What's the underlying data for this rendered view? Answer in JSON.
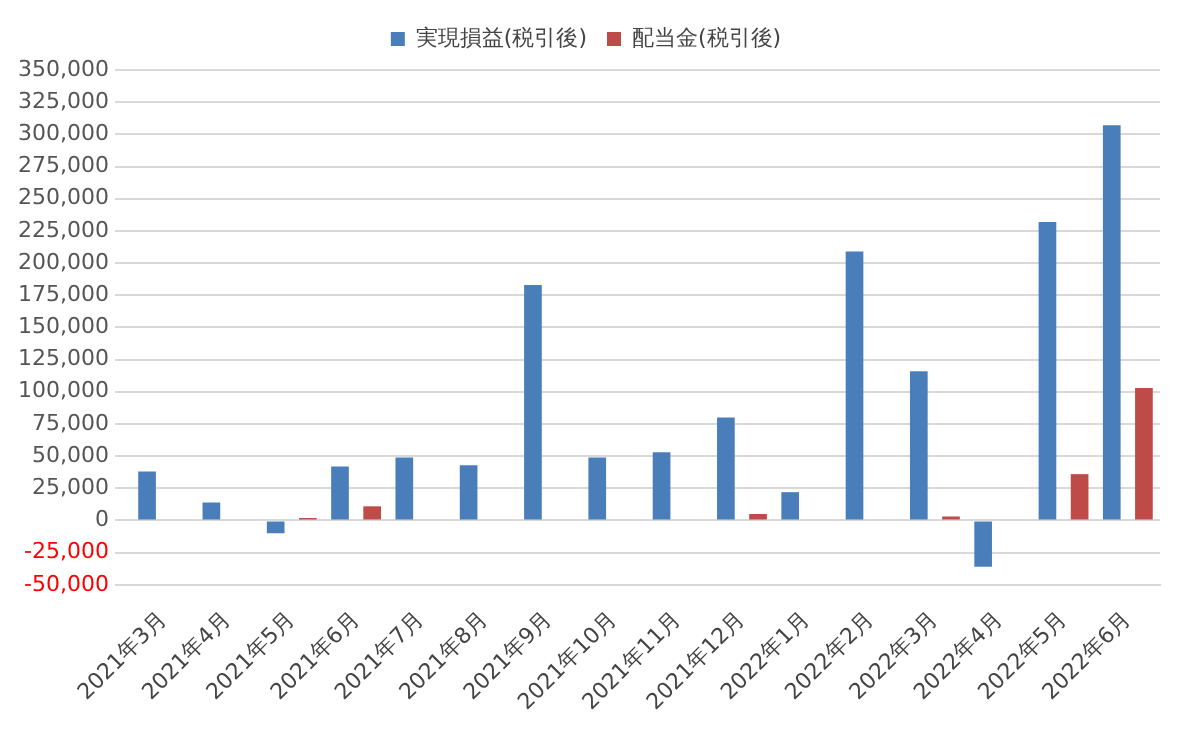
{
  "chart_data": {
    "type": "bar",
    "categories": [
      "2021年3月",
      "2021年4月",
      "2021年5月",
      "2021年6月",
      "2021年7月",
      "2021年8月",
      "2021年9月",
      "2021年10月",
      "2021年11月",
      "2021年12月",
      "2022年1月",
      "2022年2月",
      "2022年3月",
      "2022年4月",
      "2022年5月",
      "2022年6月"
    ],
    "series": [
      {
        "name": "実現損益(税引後)",
        "color": "#4a7ebb",
        "values": [
          38000,
          14000,
          -10000,
          42000,
          49000,
          43000,
          183000,
          49000,
          53000,
          80000,
          22000,
          209000,
          116000,
          -36000,
          232000,
          307000
        ]
      },
      {
        "name": "配当金(税引後)",
        "color": "#be4b48",
        "values": [
          null,
          null,
          2000,
          11000,
          null,
          null,
          null,
          null,
          null,
          5000,
          null,
          null,
          3000,
          null,
          36000,
          103000
        ]
      }
    ],
    "ylim": [
      -50000,
      350000
    ],
    "yticks": [
      {
        "value": -50000,
        "label": "-50,000"
      },
      {
        "value": -25000,
        "label": "-25,000"
      },
      {
        "value": 0,
        "label": "0"
      },
      {
        "value": 25000,
        "label": "25,000"
      },
      {
        "value": 50000,
        "label": "50,000"
      },
      {
        "value": 75000,
        "label": "75,000"
      },
      {
        "value": 100000,
        "label": "100,000"
      },
      {
        "value": 125000,
        "label": "125,000"
      },
      {
        "value": 150000,
        "label": "150,000"
      },
      {
        "value": 175000,
        "label": "175,000"
      },
      {
        "value": 200000,
        "label": "200,000"
      },
      {
        "value": 225000,
        "label": "225,000"
      },
      {
        "value": 250000,
        "label": "250,000"
      },
      {
        "value": 275000,
        "label": "275,000"
      },
      {
        "value": 300000,
        "label": "300,000"
      },
      {
        "value": 325000,
        "label": "325,000"
      },
      {
        "value": 350000,
        "label": "350,000"
      }
    ],
    "grid": "y",
    "legend": "top"
  }
}
